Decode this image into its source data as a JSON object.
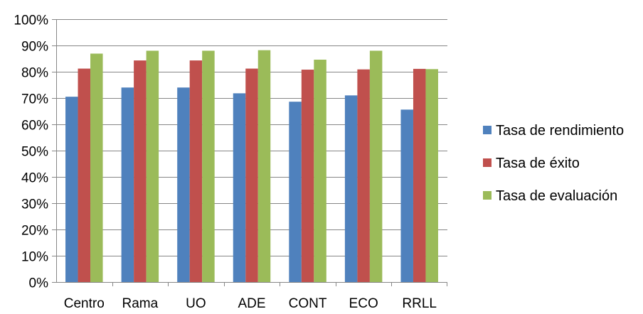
{
  "chart_data": {
    "type": "bar",
    "title": "",
    "xlabel": "",
    "ylabel": "",
    "categories": [
      "Centro",
      "Rama",
      "UO",
      "ADE",
      "CONT",
      "ECO",
      "RRLL"
    ],
    "series": [
      {
        "name": "Tasa de rendimiento",
        "color": "#4F81BD",
        "values": [
          70.5,
          74.0,
          74.0,
          71.8,
          68.6,
          71.0,
          65.6
        ]
      },
      {
        "name": "Tasa de éxito",
        "color": "#C0504D",
        "values": [
          81.2,
          84.3,
          84.3,
          81.2,
          80.8,
          80.9,
          81.1
        ]
      },
      {
        "name": "Tasa de evaluación",
        "color": "#9BBB59",
        "values": [
          86.9,
          88.0,
          88.0,
          88.2,
          84.6,
          88.0,
          81.0
        ]
      }
    ],
    "ylim": [
      0,
      100
    ],
    "ytick_step": 10,
    "ytick_format": "percent",
    "grid": true,
    "legend_position": "right"
  }
}
